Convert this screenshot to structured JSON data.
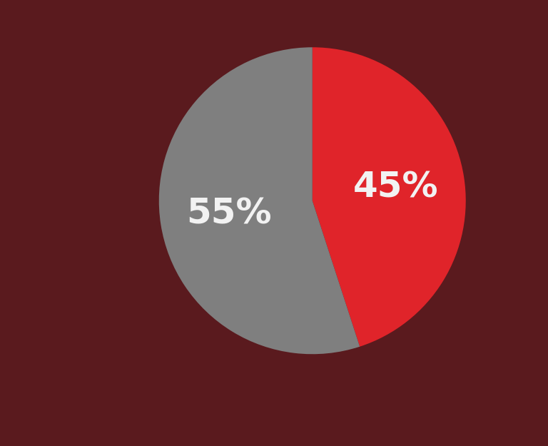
{
  "chart_data": {
    "type": "pie",
    "categories": [
      null,
      null
    ],
    "values": [
      45,
      55
    ],
    "value_labels": [
      "45%",
      "55%"
    ],
    "colors": [
      "#e0242a",
      "#7f7f7f"
    ],
    "data_labels": true
  }
}
